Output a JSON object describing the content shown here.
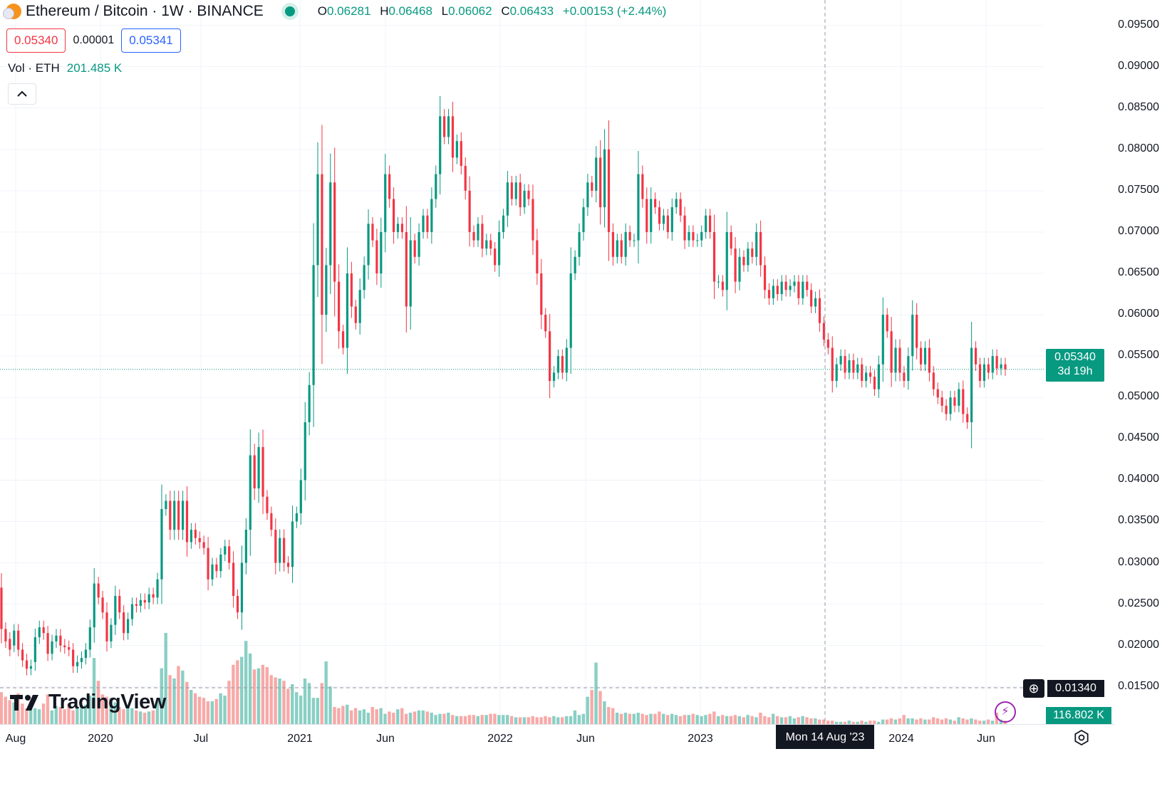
{
  "header": {
    "title": "Ethereum / Bitcoin · 1W · BINANCE",
    "ohlc": [
      {
        "k": "O",
        "v": "0.06281"
      },
      {
        "k": "H",
        "v": "0.06468"
      },
      {
        "k": "L",
        "v": "0.06062"
      },
      {
        "k": "C",
        "v": "0.06433"
      }
    ],
    "change": "+0.00153 (+2.44%)"
  },
  "quote": {
    "sell": "0.05340",
    "spread": "0.00001",
    "buy": "0.05341"
  },
  "volume": {
    "label": "Vol · ETH",
    "value": "201.485 K"
  },
  "tags": {
    "last_price": "0.05340",
    "countdown": "3d 19h",
    "crosshair_price": "0.01340",
    "crosshair_time": "Mon 14 Aug '23",
    "volume_tag": "116.802 K"
  },
  "brand": {
    "logo_text": "TradingView"
  },
  "colors": {
    "up": "#089981",
    "down": "#f23645",
    "up_vol": "#89cfc4",
    "down_vol": "#f7a9a7"
  },
  "chart_data": {
    "type": "candlestick",
    "symbol": "ETHBTC",
    "interval": "1W",
    "price_ticks": [
      "0.09500",
      "0.09000",
      "0.08500",
      "0.08000",
      "0.07500",
      "0.07000",
      "0.06500",
      "0.06000",
      "0.05500",
      "0.05000",
      "0.04500",
      "0.04000",
      "0.03500",
      "0.03000",
      "0.02500",
      "0.02000",
      "0.01500"
    ],
    "time_ticks": [
      "Aug",
      "2020",
      "Jul",
      "2021",
      "Jun",
      "2022",
      "Jun",
      "2023",
      "2024",
      "Jun"
    ],
    "ylim": [
      0.0105,
      0.0966
    ],
    "last_price": 0.0534,
    "candles": [
      {
        "o": 0.027,
        "c": 0.022
      },
      {
        "o": 0.022,
        "c": 0.0205
      },
      {
        "o": 0.0208,
        "c": 0.0195
      },
      {
        "o": 0.02,
        "c": 0.0218
      },
      {
        "o": 0.0218,
        "c": 0.0195
      },
      {
        "o": 0.0195,
        "c": 0.0182
      },
      {
        "o": 0.0182,
        "c": 0.0172
      },
      {
        "o": 0.0172,
        "c": 0.0175
      },
      {
        "o": 0.018,
        "c": 0.021
      },
      {
        "o": 0.021,
        "c": 0.0222
      },
      {
        "o": 0.0222,
        "c": 0.0215
      },
      {
        "o": 0.0215,
        "c": 0.019
      },
      {
        "o": 0.019,
        "c": 0.0205
      },
      {
        "o": 0.0205,
        "c": 0.0212
      },
      {
        "o": 0.0212,
        "c": 0.02
      },
      {
        "o": 0.02,
        "c": 0.0198
      },
      {
        "o": 0.0198,
        "c": 0.0195
      },
      {
        "o": 0.0195,
        "c": 0.0175
      },
      {
        "o": 0.0175,
        "c": 0.018
      },
      {
        "o": 0.018,
        "c": 0.0185
      },
      {
        "o": 0.0185,
        "c": 0.0195
      },
      {
        "o": 0.0195,
        "c": 0.0222
      },
      {
        "o": 0.0222,
        "c": 0.0275
      },
      {
        "o": 0.0275,
        "c": 0.0258
      },
      {
        "o": 0.0258,
        "c": 0.024
      },
      {
        "o": 0.024,
        "c": 0.0205
      },
      {
        "o": 0.0205,
        "c": 0.0225
      },
      {
        "o": 0.0225,
        "c": 0.026
      },
      {
        "o": 0.026,
        "c": 0.024
      },
      {
        "o": 0.024,
        "c": 0.0215
      },
      {
        "o": 0.0215,
        "c": 0.0232
      },
      {
        "o": 0.0232,
        "c": 0.025
      },
      {
        "o": 0.025,
        "c": 0.0248
      },
      {
        "o": 0.0248,
        "c": 0.0255
      },
      {
        "o": 0.0255,
        "c": 0.0252
      },
      {
        "o": 0.0252,
        "c": 0.0262
      },
      {
        "o": 0.0262,
        "c": 0.0258
      },
      {
        "o": 0.0258,
        "c": 0.028
      },
      {
        "o": 0.028,
        "c": 0.0365
      },
      {
        "o": 0.0365,
        "c": 0.0375
      },
      {
        "o": 0.0375,
        "c": 0.034
      },
      {
        "o": 0.034,
        "c": 0.0375
      },
      {
        "o": 0.0375,
        "c": 0.034
      },
      {
        "o": 0.034,
        "c": 0.0375
      },
      {
        "o": 0.0375,
        "c": 0.0325
      },
      {
        "o": 0.0325,
        "c": 0.034
      },
      {
        "o": 0.034,
        "c": 0.033
      },
      {
        "o": 0.033,
        "c": 0.0325
      },
      {
        "o": 0.0325,
        "c": 0.0318
      },
      {
        "o": 0.0318,
        "c": 0.028
      },
      {
        "o": 0.028,
        "c": 0.0298
      },
      {
        "o": 0.0298,
        "c": 0.029
      },
      {
        "o": 0.029,
        "c": 0.031
      },
      {
        "o": 0.031,
        "c": 0.032
      },
      {
        "o": 0.032,
        "c": 0.03
      },
      {
        "o": 0.03,
        "c": 0.026
      },
      {
        "o": 0.026,
        "c": 0.024
      },
      {
        "o": 0.024,
        "c": 0.03
      },
      {
        "o": 0.03,
        "c": 0.034
      },
      {
        "o": 0.034,
        "c": 0.043
      },
      {
        "o": 0.043,
        "c": 0.039
      },
      {
        "o": 0.039,
        "c": 0.044
      },
      {
        "o": 0.044,
        "c": 0.038
      },
      {
        "o": 0.038,
        "c": 0.036
      },
      {
        "o": 0.036,
        "c": 0.034
      },
      {
        "o": 0.034,
        "c": 0.03
      },
      {
        "o": 0.03,
        "c": 0.033
      },
      {
        "o": 0.033,
        "c": 0.03
      },
      {
        "o": 0.03,
        "c": 0.0295
      },
      {
        "o": 0.0295,
        "c": 0.035
      },
      {
        "o": 0.035,
        "c": 0.036
      },
      {
        "o": 0.036,
        "c": 0.04
      },
      {
        "o": 0.04,
        "c": 0.047
      },
      {
        "o": 0.047,
        "c": 0.0515
      },
      {
        "o": 0.0515,
        "c": 0.066
      },
      {
        "o": 0.066,
        "c": 0.077
      },
      {
        "o": 0.077,
        "c": 0.06
      },
      {
        "o": 0.06,
        "c": 0.066
      },
      {
        "o": 0.066,
        "c": 0.076
      },
      {
        "o": 0.076,
        "c": 0.064
      },
      {
        "o": 0.064,
        "c": 0.058
      },
      {
        "o": 0.058,
        "c": 0.056
      },
      {
        "o": 0.056,
        "c": 0.065
      },
      {
        "o": 0.065,
        "c": 0.061
      },
      {
        "o": 0.061,
        "c": 0.059
      },
      {
        "o": 0.059,
        "c": 0.063
      },
      {
        "o": 0.063,
        "c": 0.066
      },
      {
        "o": 0.066,
        "c": 0.071
      },
      {
        "o": 0.071,
        "c": 0.069
      },
      {
        "o": 0.069,
        "c": 0.065
      },
      {
        "o": 0.065,
        "c": 0.07
      },
      {
        "o": 0.07,
        "c": 0.077
      },
      {
        "o": 0.077,
        "c": 0.074
      },
      {
        "o": 0.074,
        "c": 0.07
      },
      {
        "o": 0.07,
        "c": 0.071
      },
      {
        "o": 0.071,
        "c": 0.07
      },
      {
        "o": 0.07,
        "c": 0.061
      },
      {
        "o": 0.061,
        "c": 0.069
      },
      {
        "o": 0.069,
        "c": 0.067
      },
      {
        "o": 0.067,
        "c": 0.07
      },
      {
        "o": 0.07,
        "c": 0.072
      },
      {
        "o": 0.072,
        "c": 0.07
      },
      {
        "o": 0.07,
        "c": 0.074
      },
      {
        "o": 0.074,
        "c": 0.077
      },
      {
        "o": 0.077,
        "c": 0.084
      },
      {
        "o": 0.084,
        "c": 0.0815
      },
      {
        "o": 0.0815,
        "c": 0.084
      },
      {
        "o": 0.084,
        "c": 0.079
      },
      {
        "o": 0.079,
        "c": 0.081
      },
      {
        "o": 0.081,
        "c": 0.078
      },
      {
        "o": 0.078,
        "c": 0.075
      },
      {
        "o": 0.075,
        "c": 0.07
      },
      {
        "o": 0.07,
        "c": 0.069
      },
      {
        "o": 0.069,
        "c": 0.071
      },
      {
        "o": 0.071,
        "c": 0.068
      },
      {
        "o": 0.068,
        "c": 0.069
      },
      {
        "o": 0.069,
        "c": 0.068
      },
      {
        "o": 0.068,
        "c": 0.066
      },
      {
        "o": 0.066,
        "c": 0.07
      },
      {
        "o": 0.07,
        "c": 0.072
      },
      {
        "o": 0.072,
        "c": 0.076
      },
      {
        "o": 0.076,
        "c": 0.074
      },
      {
        "o": 0.074,
        "c": 0.076
      },
      {
        "o": 0.076,
        "c": 0.073
      },
      {
        "o": 0.073,
        "c": 0.075
      },
      {
        "o": 0.075,
        "c": 0.074
      },
      {
        "o": 0.074,
        "c": 0.069
      },
      {
        "o": 0.069,
        "c": 0.065
      },
      {
        "o": 0.065,
        "c": 0.06
      },
      {
        "o": 0.06,
        "c": 0.058
      },
      {
        "o": 0.058,
        "c": 0.052
      },
      {
        "o": 0.052,
        "c": 0.053
      },
      {
        "o": 0.053,
        "c": 0.055
      },
      {
        "o": 0.055,
        "c": 0.053
      },
      {
        "o": 0.053,
        "c": 0.056
      },
      {
        "o": 0.056,
        "c": 0.065
      },
      {
        "o": 0.065,
        "c": 0.067
      },
      {
        "o": 0.067,
        "c": 0.07
      },
      {
        "o": 0.07,
        "c": 0.073
      },
      {
        "o": 0.073,
        "c": 0.076
      },
      {
        "o": 0.076,
        "c": 0.075
      },
      {
        "o": 0.075,
        "c": 0.079
      },
      {
        "o": 0.079,
        "c": 0.073
      },
      {
        "o": 0.073,
        "c": 0.08
      },
      {
        "o": 0.08,
        "c": 0.07
      },
      {
        "o": 0.07,
        "c": 0.067
      },
      {
        "o": 0.067,
        "c": 0.069
      },
      {
        "o": 0.069,
        "c": 0.067
      },
      {
        "o": 0.067,
        "c": 0.07
      },
      {
        "o": 0.07,
        "c": 0.069
      },
      {
        "o": 0.069,
        "c": 0.069
      },
      {
        "o": 0.069,
        "c": 0.077
      },
      {
        "o": 0.077,
        "c": 0.074
      },
      {
        "o": 0.074,
        "c": 0.07
      },
      {
        "o": 0.07,
        "c": 0.074
      },
      {
        "o": 0.074,
        "c": 0.073
      },
      {
        "o": 0.073,
        "c": 0.071
      },
      {
        "o": 0.071,
        "c": 0.072
      },
      {
        "o": 0.072,
        "c": 0.07
      },
      {
        "o": 0.07,
        "c": 0.073
      },
      {
        "o": 0.073,
        "c": 0.074
      },
      {
        "o": 0.074,
        "c": 0.072
      },
      {
        "o": 0.072,
        "c": 0.069
      },
      {
        "o": 0.069,
        "c": 0.07
      },
      {
        "o": 0.07,
        "c": 0.069
      },
      {
        "o": 0.069,
        "c": 0.069
      },
      {
        "o": 0.069,
        "c": 0.07
      },
      {
        "o": 0.07,
        "c": 0.072
      },
      {
        "o": 0.072,
        "c": 0.07
      },
      {
        "o": 0.07,
        "c": 0.064
      },
      {
        "o": 0.064,
        "c": 0.064
      },
      {
        "o": 0.064,
        "c": 0.063
      },
      {
        "o": 0.063,
        "c": 0.07
      },
      {
        "o": 0.07,
        "c": 0.068
      },
      {
        "o": 0.068,
        "c": 0.064
      },
      {
        "o": 0.064,
        "c": 0.067
      },
      {
        "o": 0.067,
        "c": 0.066
      },
      {
        "o": 0.066,
        "c": 0.068
      },
      {
        "o": 0.068,
        "c": 0.067
      },
      {
        "o": 0.067,
        "c": 0.07
      },
      {
        "o": 0.07,
        "c": 0.066
      },
      {
        "o": 0.066,
        "c": 0.063
      },
      {
        "o": 0.063,
        "c": 0.062
      },
      {
        "o": 0.062,
        "c": 0.0635
      },
      {
        "o": 0.0635,
        "c": 0.0625
      },
      {
        "o": 0.0625,
        "c": 0.064
      },
      {
        "o": 0.064,
        "c": 0.063
      },
      {
        "o": 0.063,
        "c": 0.0635
      },
      {
        "o": 0.0635,
        "c": 0.064
      },
      {
        "o": 0.064,
        "c": 0.062
      },
      {
        "o": 0.062,
        "c": 0.064
      },
      {
        "o": 0.064,
        "c": 0.063
      },
      {
        "o": 0.063,
        "c": 0.061
      },
      {
        "o": 0.061,
        "c": 0.062
      },
      {
        "o": 0.062,
        "c": 0.059
      },
      {
        "o": 0.059,
        "c": 0.057
      },
      {
        "o": 0.057,
        "c": 0.056
      },
      {
        "o": 0.056,
        "c": 0.052
      },
      {
        "o": 0.052,
        "c": 0.054
      },
      {
        "o": 0.054,
        "c": 0.055
      },
      {
        "o": 0.055,
        "c": 0.053
      },
      {
        "o": 0.053,
        "c": 0.0545
      },
      {
        "o": 0.0545,
        "c": 0.053
      },
      {
        "o": 0.053,
        "c": 0.054
      },
      {
        "o": 0.054,
        "c": 0.052
      },
      {
        "o": 0.052,
        "c": 0.053
      },
      {
        "o": 0.053,
        "c": 0.0525
      },
      {
        "o": 0.0525,
        "c": 0.051
      },
      {
        "o": 0.051,
        "c": 0.054
      },
      {
        "o": 0.054,
        "c": 0.06
      },
      {
        "o": 0.06,
        "c": 0.058
      },
      {
        "o": 0.058,
        "c": 0.053
      },
      {
        "o": 0.053,
        "c": 0.056
      },
      {
        "o": 0.056,
        "c": 0.053
      },
      {
        "o": 0.053,
        "c": 0.052
      },
      {
        "o": 0.052,
        "c": 0.055
      },
      {
        "o": 0.055,
        "c": 0.06
      },
      {
        "o": 0.06,
        "c": 0.056
      },
      {
        "o": 0.056,
        "c": 0.054
      },
      {
        "o": 0.054,
        "c": 0.056
      },
      {
        "o": 0.056,
        "c": 0.053
      },
      {
        "o": 0.053,
        "c": 0.051
      },
      {
        "o": 0.051,
        "c": 0.05
      },
      {
        "o": 0.05,
        "c": 0.049
      },
      {
        "o": 0.049,
        "c": 0.048
      },
      {
        "o": 0.048,
        "c": 0.05
      },
      {
        "o": 0.05,
        "c": 0.049
      },
      {
        "o": 0.049,
        "c": 0.051
      },
      {
        "o": 0.051,
        "c": 0.048
      },
      {
        "o": 0.048,
        "c": 0.047
      },
      {
        "o": 0.047,
        "c": 0.056
      },
      {
        "o": 0.056,
        "c": 0.054
      },
      {
        "o": 0.054,
        "c": 0.052
      },
      {
        "o": 0.052,
        "c": 0.054
      },
      {
        "o": 0.054,
        "c": 0.053
      },
      {
        "o": 0.053,
        "c": 0.055
      },
      {
        "o": 0.055,
        "c": 0.0535
      },
      {
        "o": 0.0535,
        "c": 0.054
      },
      {
        "o": 0.054,
        "c": 0.0534
      }
    ],
    "volume": [
      0.28,
      0.24,
      0.21,
      0.19,
      0.27,
      0.18,
      0.14,
      0.17,
      0.14,
      0.13,
      0.18,
      0.26,
      0.12,
      0.16,
      0.15,
      0.13,
      0.18,
      0.12,
      0.14,
      0.16,
      0.17,
      0.25,
      0.58,
      0.38,
      0.26,
      0.24,
      0.23,
      0.19,
      0.15,
      0.13,
      0.17,
      0.14,
      0.12,
      0.11,
      0.1,
      0.11,
      0.12,
      0.21,
      0.49,
      0.8,
      0.43,
      0.4,
      0.51,
      0.47,
      0.37,
      0.3,
      0.27,
      0.24,
      0.23,
      0.2,
      0.2,
      0.22,
      0.27,
      0.25,
      0.38,
      0.52,
      0.56,
      0.59,
      0.73,
      0.62,
      0.48,
      0.49,
      0.52,
      0.5,
      0.43,
      0.41,
      0.4,
      0.38,
      0.31,
      0.35,
      0.28,
      0.25,
      0.4,
      0.36,
      0.23,
      0.23,
      0.36,
      0.55,
      0.33,
      0.15,
      0.14,
      0.16,
      0.17,
      0.12,
      0.14,
      0.12,
      0.13,
      0.1,
      0.15,
      0.13,
      0.14,
      0.09,
      0.11,
      0.1,
      0.13,
      0.14,
      0.09,
      0.1,
      0.11,
      0.12,
      0.12,
      0.11,
      0.1,
      0.08,
      0.09,
      0.09,
      0.1,
      0.08,
      0.07,
      0.07,
      0.07,
      0.08,
      0.08,
      0.07,
      0.08,
      0.08,
      0.09,
      0.09,
      0.08,
      0.08,
      0.08,
      0.07,
      0.06,
      0.06,
      0.06,
      0.06,
      0.07,
      0.06,
      0.06,
      0.07,
      0.06,
      0.07,
      0.06,
      0.06,
      0.07,
      0.07,
      0.12,
      0.08,
      0.09,
      0.24,
      0.3,
      0.54,
      0.29,
      0.2,
      0.15,
      0.14,
      0.1,
      0.09,
      0.1,
      0.09,
      0.09,
      0.1,
      0.09,
      0.08,
      0.09,
      0.09,
      0.11,
      0.09,
      0.08,
      0.09,
      0.08,
      0.07,
      0.08,
      0.08,
      0.09,
      0.08,
      0.07,
      0.08,
      0.09,
      0.11,
      0.07,
      0.08,
      0.07,
      0.07,
      0.08,
      0.07,
      0.06,
      0.08,
      0.07,
      0.06,
      0.1,
      0.07,
      0.06,
      0.09,
      0.07,
      0.06,
      0.06,
      0.07,
      0.05,
      0.06,
      0.07,
      0.06,
      0.05,
      0.05,
      0.04,
      0.04,
      0.03,
      0.03,
      0.02,
      0.02,
      0.02,
      0.03,
      0.02,
      0.02,
      0.03,
      0.02,
      0.03,
      0.03,
      0.02,
      0.04,
      0.04,
      0.05,
      0.04,
      0.05,
      0.08,
      0.05,
      0.05,
      0.04,
      0.05,
      0.04,
      0.04,
      0.06,
      0.05,
      0.04,
      0.05,
      0.04,
      0.03,
      0.06,
      0.05,
      0.04,
      0.05,
      0.04,
      0.03,
      0.03,
      0.04,
      0.03,
      0.1,
      0.04,
      0.03,
      0.03,
      0.02,
      0.02,
      0.02,
      0.02
    ]
  }
}
